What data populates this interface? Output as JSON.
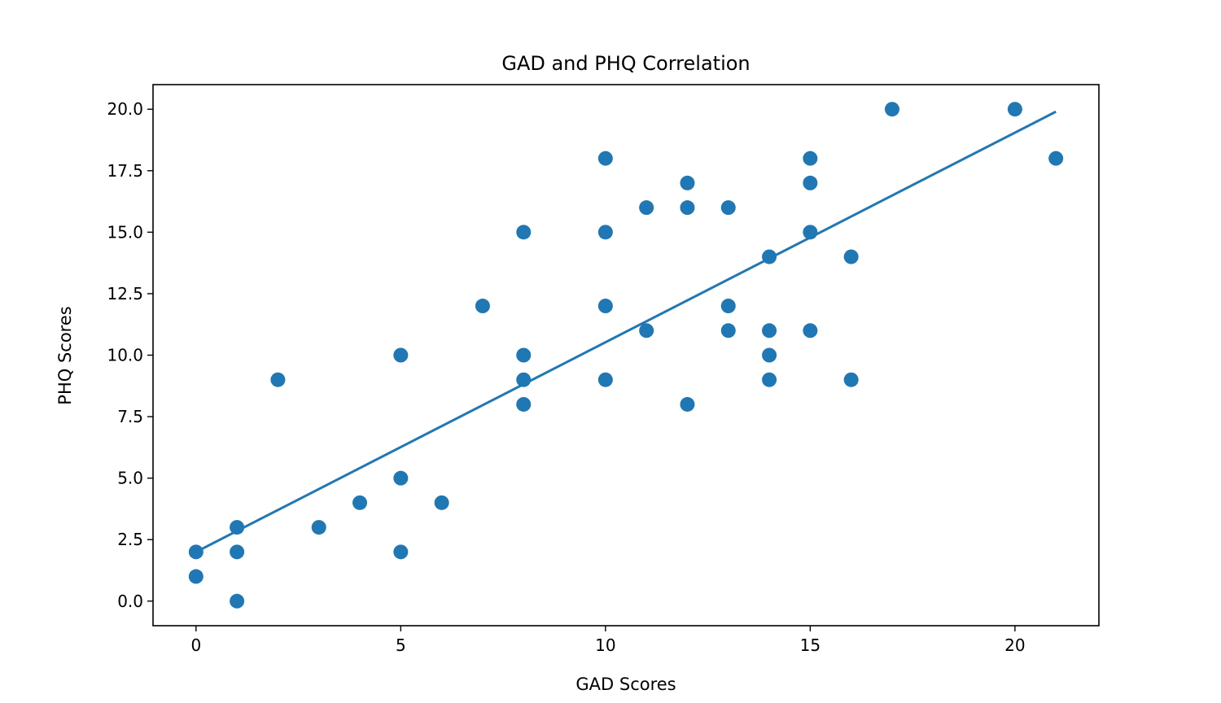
{
  "chart_data": {
    "type": "scatter",
    "title": "GAD and PHQ Correlation",
    "xlabel": "GAD Scores",
    "ylabel": "PHQ Scores",
    "xlim": [
      -1.05,
      22.05
    ],
    "ylim": [
      -1.0,
      21.0
    ],
    "xticks": [
      0,
      5,
      10,
      15,
      20
    ],
    "xtick_labels": [
      "0",
      "5",
      "10",
      "15",
      "20"
    ],
    "yticks": [
      0,
      2.5,
      5,
      7.5,
      10,
      12.5,
      15,
      17.5,
      20
    ],
    "ytick_labels": [
      "0.0",
      "2.5",
      "5.0",
      "7.5",
      "10.0",
      "12.5",
      "15.0",
      "17.5",
      "20.0"
    ],
    "grid": false,
    "marker_color": "#1f77b4",
    "line_color": "#1f77b4",
    "series": [
      {
        "type": "scatter",
        "points": [
          [
            0,
            2
          ],
          [
            0,
            1
          ],
          [
            1,
            3
          ],
          [
            1,
            2
          ],
          [
            1,
            0
          ],
          [
            2,
            9
          ],
          [
            3,
            3
          ],
          [
            4,
            4
          ],
          [
            5,
            10
          ],
          [
            5,
            5
          ],
          [
            5,
            2
          ],
          [
            6,
            4
          ],
          [
            7,
            12
          ],
          [
            8,
            15
          ],
          [
            8,
            10
          ],
          [
            8,
            9
          ],
          [
            8,
            8
          ],
          [
            10,
            18
          ],
          [
            10,
            15
          ],
          [
            10,
            12
          ],
          [
            10,
            9
          ],
          [
            11,
            16
          ],
          [
            11,
            11
          ],
          [
            12,
            17
          ],
          [
            12,
            16
          ],
          [
            12,
            8
          ],
          [
            13,
            16
          ],
          [
            13,
            12
          ],
          [
            13,
            11
          ],
          [
            14,
            14
          ],
          [
            14,
            11
          ],
          [
            14,
            10
          ],
          [
            14,
            9
          ],
          [
            15,
            18
          ],
          [
            15,
            17
          ],
          [
            15,
            15
          ],
          [
            15,
            11
          ],
          [
            16,
            14
          ],
          [
            16,
            9
          ],
          [
            17,
            20
          ],
          [
            20,
            20
          ],
          [
            21,
            18
          ]
        ]
      },
      {
        "type": "line",
        "points": [
          [
            0,
            2.0
          ],
          [
            21,
            19.9
          ]
        ]
      }
    ]
  }
}
